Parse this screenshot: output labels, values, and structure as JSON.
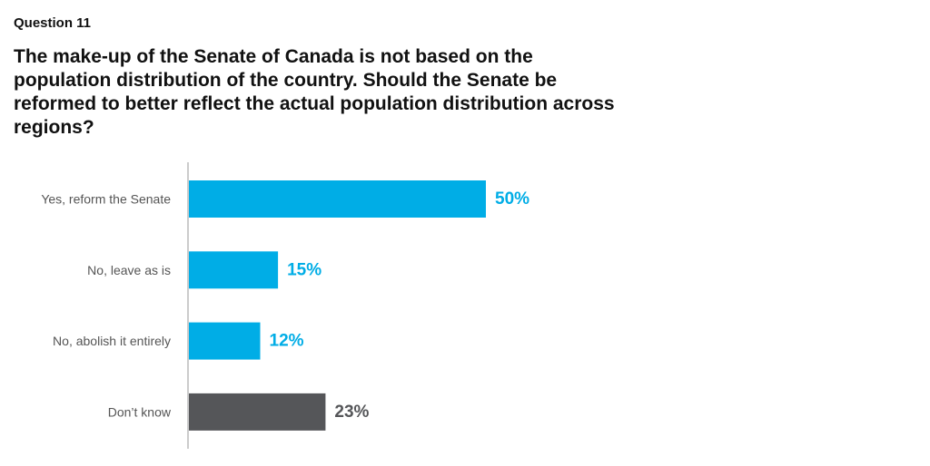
{
  "question_number": "Question 11",
  "question_text": "The make-up of the Senate of Canada is not based on the population distribution of the country. Should the Senate be reformed to better reflect the actual population distribution across regions?",
  "chart_data": {
    "type": "bar",
    "orientation": "horizontal",
    "title": "The make-up of the Senate of Canada is not based on the population distribution of the country. Should the Senate be reformed to better reflect the actual population distribution across regions?",
    "categories": [
      "Yes, reform the Senate",
      "No, leave as is",
      "No, abolish it entirely",
      "Don’t know"
    ],
    "values": [
      50,
      15,
      12,
      23
    ],
    "value_labels": [
      "50%",
      "15%",
      "12%",
      "23%"
    ],
    "unit": "%",
    "xlim": [
      0,
      100
    ],
    "grid": false,
    "legend": "none",
    "bar_colors": [
      "#00ADE6",
      "#00ADE6",
      "#00ADE6",
      "#555659"
    ],
    "label_colors": [
      "#00ADE6",
      "#00ADE6",
      "#00ADE6",
      "#555659"
    ],
    "axis_color": "#bbbbbb"
  }
}
